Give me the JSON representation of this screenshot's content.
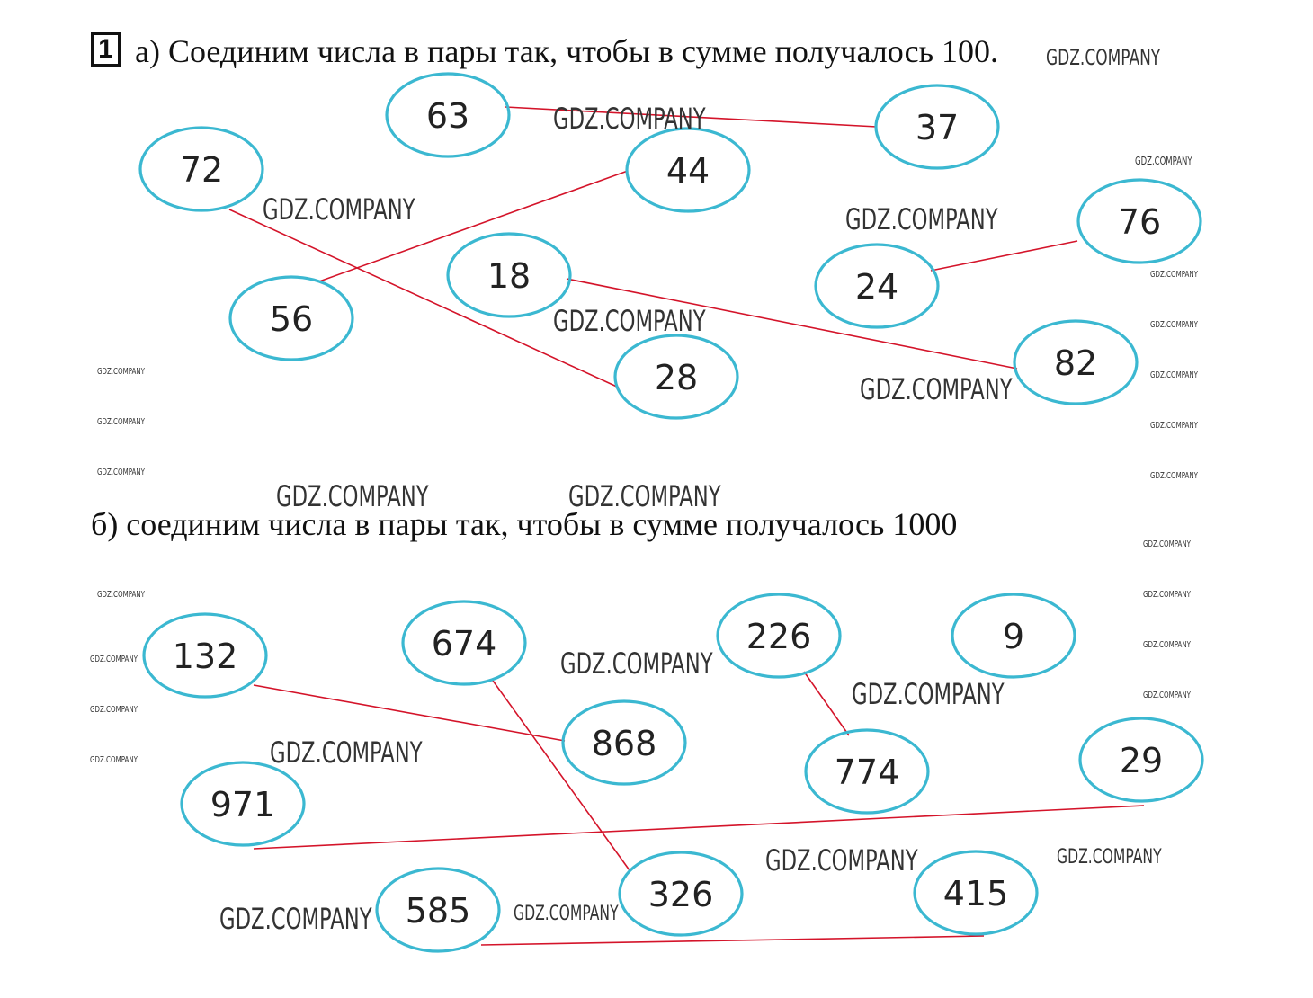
{
  "task": {
    "number": "1",
    "part_a_heading": "а) Соединим числа в пары так, чтобы в сумме получалось 100.",
    "part_b_heading": "б) соединим числа в пары так, чтобы в сумме получалось 1000"
  },
  "watermark": "GDZ.COMPANY",
  "colors": {
    "ellipse_stroke": "#3bb8d1",
    "line": "#d4142a"
  },
  "part_a": {
    "numbers": [
      "63",
      "37",
      "72",
      "44",
      "76",
      "56",
      "18",
      "24",
      "82",
      "28"
    ],
    "pairs": [
      [
        "63",
        "37"
      ],
      [
        "72",
        "28"
      ],
      [
        "56",
        "44"
      ],
      [
        "18",
        "82"
      ],
      [
        "24",
        "76"
      ]
    ]
  },
  "part_b": {
    "numbers": [
      "132",
      "674",
      "226",
      "9",
      "868",
      "774",
      "29",
      "971",
      "326",
      "415",
      "585"
    ],
    "pairs": [
      [
        "132",
        "868"
      ],
      [
        "674",
        "326"
      ],
      [
        "226",
        "774"
      ],
      [
        "971",
        "29"
      ],
      [
        "585",
        "415"
      ]
    ]
  }
}
